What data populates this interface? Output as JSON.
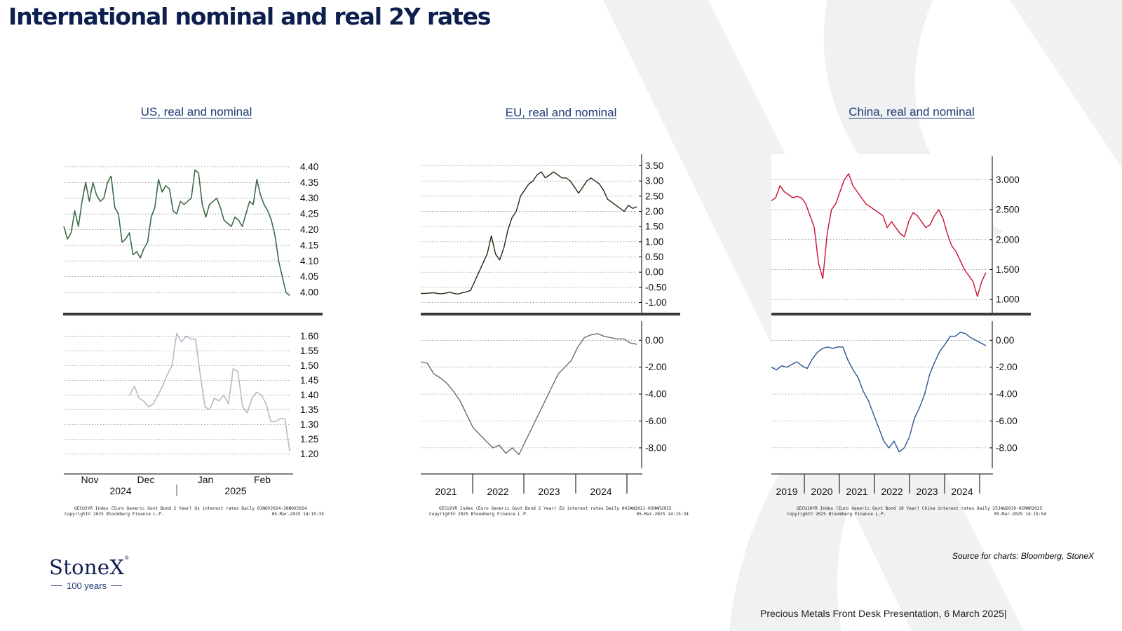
{
  "title": "International nominal and real 2Y rates",
  "source_note": "Source for charts: Bloomberg, StoneX",
  "footer": "Precious Metals Front Desk Presentation, 6 March 2025|",
  "logo": {
    "name": "StoneX",
    "tm": "®",
    "tagline": "100 years"
  },
  "colors": {
    "title": "#0d1f4f",
    "us_nominal": "#3d6b45",
    "us_real": "#b3bcc6",
    "eu_nominal": "#1b3010",
    "eu_real": "#6b6b6b",
    "cn_nominal": "#c8102e",
    "cn_real": "#2d5596"
  },
  "charts": [
    {
      "title": "US, real and nominal",
      "caption": [
        "GECU2YR Index (Euro Generic Govt Bond 2 Year) Us interest rates  Daily 01NOV2024-30NOV2024",
        "Copyright© 2025 Bloomberg Finance L.P.",
        "05-Mar-2025 14:15:35"
      ]
    },
    {
      "title": "EU, real and nominal",
      "caption": [
        "GECU2YR Index (Euro Generic Govt Bond 2 Year) EU interest rates  Daily 04JAN2021-05MAR2025",
        "Copyright© 2025 Bloomberg Finance L.P.",
        "05-Mar-2025 14:15:34"
      ]
    },
    {
      "title": "China, real and nominal",
      "caption": [
        "GECU10YR Index (Euro Generic Govt Bond 10 Year) China interest rates  Daily 25JAN2019-05MAR2025",
        "Copyright© 2025 Bloomberg Finance L.P.",
        "05-Mar-2025 14:15:54"
      ]
    }
  ],
  "chart_data": [
    {
      "type": "line",
      "title": "US, real and nominal",
      "xlabel": "",
      "ylabel": "",
      "x_ticks": [
        "Nov",
        "Dec",
        "Jan",
        "Feb"
      ],
      "x_year_labels": [
        "2024",
        "2025"
      ],
      "panels": [
        {
          "name": "US nominal 2Y",
          "ylim": [
            3.98,
            4.42
          ],
          "yticks": [
            "4.40",
            "4.35",
            "4.30",
            "4.25",
            "4.20",
            "4.15",
            "4.10",
            "4.05",
            "4.00"
          ],
          "values": [
            4.21,
            4.17,
            4.19,
            4.26,
            4.21,
            4.29,
            4.35,
            4.29,
            4.35,
            4.31,
            4.29,
            4.3,
            4.35,
            4.37,
            4.27,
            4.25,
            4.16,
            4.17,
            4.19,
            4.12,
            4.13,
            4.11,
            4.14,
            4.16,
            4.24,
            4.27,
            4.36,
            4.32,
            4.34,
            4.33,
            4.26,
            4.25,
            4.29,
            4.28,
            4.29,
            4.3,
            4.39,
            4.38,
            4.28,
            4.24,
            4.28,
            4.29,
            4.3,
            4.27,
            4.23,
            4.22,
            4.21,
            4.24,
            4.23,
            4.21,
            4.25,
            4.29,
            4.28,
            4.36,
            4.31,
            4.28,
            4.26,
            4.23,
            4.18,
            4.1,
            4.05,
            4.0,
            3.99
          ]
        },
        {
          "name": "US real 2Y",
          "ylim": [
            1.18,
            1.62
          ],
          "yticks": [
            "1.60",
            "1.55",
            "1.50",
            "1.45",
            "1.40",
            "1.35",
            "1.30",
            "1.25",
            "1.20"
          ],
          "values": [
            null,
            null,
            null,
            null,
            null,
            null,
            null,
            null,
            null,
            null,
            null,
            null,
            null,
            null,
            1.4,
            1.43,
            1.39,
            1.38,
            1.36,
            1.37,
            1.4,
            1.43,
            1.47,
            1.5,
            1.61,
            1.58,
            1.6,
            1.59,
            1.59,
            1.47,
            1.36,
            1.35,
            1.39,
            1.38,
            1.4,
            1.37,
            1.49,
            1.48,
            1.36,
            1.34,
            1.39,
            1.41,
            1.4,
            1.37,
            1.31,
            1.31,
            1.32,
            1.32,
            1.21
          ]
        }
      ]
    },
    {
      "type": "line",
      "title": "EU, real and nominal",
      "xlabel": "",
      "ylabel": "",
      "x_ticks": [
        "2021",
        "2022",
        "2023",
        "2024"
      ],
      "panels": [
        {
          "name": "EU nominal 2Y",
          "ylim": [
            -1.15,
            3.65
          ],
          "yticks": [
            "3.50",
            "3.00",
            "2.50",
            "2.00",
            "1.50",
            "1.00",
            "0.50",
            "0.00",
            "-0.50",
            "-1.00"
          ],
          "values": [
            -0.7,
            -0.7,
            -0.69,
            -0.68,
            -0.7,
            -0.71,
            -0.69,
            -0.66,
            -0.7,
            -0.72,
            -0.68,
            -0.65,
            -0.6,
            -0.3,
            0.0,
            0.3,
            0.6,
            1.2,
            0.6,
            0.4,
            0.8,
            1.4,
            1.8,
            2.0,
            2.5,
            2.7,
            2.9,
            3.0,
            3.2,
            3.3,
            3.1,
            3.2,
            3.3,
            3.2,
            3.1,
            3.1,
            3.0,
            2.8,
            2.6,
            2.8,
            3.0,
            3.1,
            3.0,
            2.9,
            2.7,
            2.4,
            2.3,
            2.2,
            2.1,
            2.0,
            2.2,
            2.1,
            2.15
          ]
        },
        {
          "name": "EU real 2Y",
          "ylim": [
            -9.0,
            0.8
          ],
          "yticks": [
            "0.00",
            "-2.00",
            "-4.00",
            "-6.00",
            "-8.00"
          ],
          "values": [
            -1.6,
            -1.7,
            -2.5,
            -2.8,
            -3.2,
            -3.8,
            -4.5,
            -5.5,
            -6.5,
            -7.0,
            -7.5,
            -8.0,
            -7.8,
            -8.4,
            -8.0,
            -8.5,
            -7.5,
            -6.5,
            -5.5,
            -4.5,
            -3.5,
            -2.5,
            -2.0,
            -1.5,
            -0.5,
            0.2,
            0.4,
            0.5,
            0.3,
            0.2,
            0.1,
            0.1,
            -0.2,
            -0.3
          ]
        }
      ]
    },
    {
      "type": "line",
      "title": "China, real and nominal",
      "xlabel": "",
      "ylabel": "",
      "x_ticks": [
        "2019",
        "2020",
        "2021",
        "2022",
        "2023",
        "2024"
      ],
      "panels": [
        {
          "name": "China nominal 10Y",
          "ylim": [
            0.85,
            3.25
          ],
          "yticks": [
            "3.000",
            "2.500",
            "2.000",
            "1.500",
            "1.000"
          ],
          "values": [
            2.65,
            2.7,
            2.9,
            2.8,
            2.75,
            2.7,
            2.72,
            2.7,
            2.6,
            2.4,
            2.2,
            1.6,
            1.35,
            2.1,
            2.5,
            2.6,
            2.8,
            3.0,
            3.1,
            2.9,
            2.8,
            2.7,
            2.6,
            2.55,
            2.5,
            2.45,
            2.4,
            2.2,
            2.3,
            2.2,
            2.1,
            2.05,
            2.3,
            2.45,
            2.4,
            2.3,
            2.2,
            2.25,
            2.4,
            2.5,
            2.35,
            2.1,
            1.9,
            1.8,
            1.65,
            1.5,
            1.4,
            1.3,
            1.05,
            1.3,
            1.45
          ]
        },
        {
          "name": "China real 10Y",
          "ylim": [
            -9.0,
            0.8
          ],
          "yticks": [
            "0.00",
            "-2.00",
            "-4.00",
            "-6.00",
            "-8.00"
          ],
          "values": [
            -2.0,
            -2.2,
            -1.9,
            -2.0,
            -1.8,
            -1.6,
            -1.9,
            -2.1,
            -1.4,
            -0.9,
            -0.6,
            -0.5,
            -0.6,
            -0.5,
            -0.5,
            -1.5,
            -2.2,
            -2.8,
            -3.8,
            -4.5,
            -5.5,
            -6.5,
            -7.5,
            -8.0,
            -7.5,
            -8.3,
            -8.0,
            -7.2,
            -5.8,
            -5.0,
            -4.0,
            -2.5,
            -1.6,
            -0.8,
            -0.3,
            0.3,
            0.3,
            0.6,
            0.5,
            0.2,
            0.0,
            -0.2,
            -0.4
          ]
        }
      ]
    }
  ]
}
